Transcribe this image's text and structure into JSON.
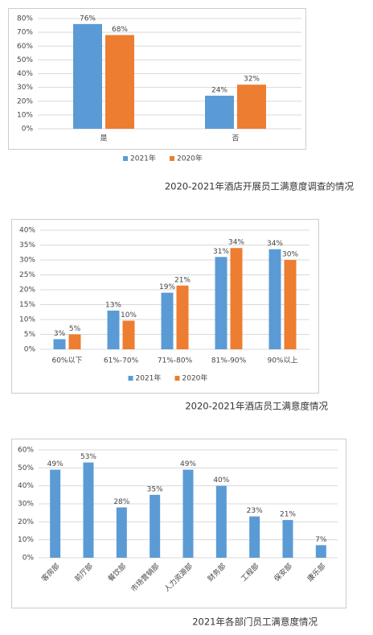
{
  "chart_data": [
    {
      "type": "bar",
      "title": "2020-2021年酒店开展员工满意度调查的情况",
      "categories": [
        "是",
        "否"
      ],
      "series": [
        {
          "name": "2021年",
          "color": "#5b9bd5",
          "values": [
            76,
            24
          ],
          "value_labels": [
            "76%",
            "24%"
          ]
        },
        {
          "name": "2020年",
          "color": "#ed7d31",
          "values": [
            68,
            32
          ],
          "value_labels": [
            "68%",
            "32%"
          ]
        }
      ],
      "ylim": [
        0,
        80
      ],
      "yticks": [
        {
          "value": 0,
          "label": "0%"
        },
        {
          "value": 10,
          "label": "10%"
        },
        {
          "value": 20,
          "label": "20%"
        },
        {
          "value": 30,
          "label": "30%"
        },
        {
          "value": 40,
          "label": "40%"
        },
        {
          "value": 50,
          "label": "50%"
        },
        {
          "value": 60,
          "label": "60%"
        },
        {
          "value": 70,
          "label": "70%"
        },
        {
          "value": 80,
          "label": "80%"
        }
      ],
      "grid": true,
      "legend": "bottom"
    },
    {
      "type": "bar",
      "title": "2020-2021年酒店员工满意度情况",
      "categories": [
        "60%以下",
        "61%-70%",
        "71%-80%",
        "81%-90%",
        "90%以上"
      ],
      "series": [
        {
          "name": "2021年",
          "color": "#5b9bd5",
          "values": [
            3.4,
            13,
            19,
            31,
            33.6
          ],
          "value_labels": [
            "3%",
            "13%",
            "19%",
            "31%",
            "34%"
          ]
        },
        {
          "name": "2020年",
          "color": "#ed7d31",
          "values": [
            5,
            9.6,
            21.4,
            34,
            30
          ],
          "value_labels": [
            "5%",
            "10%",
            "21%",
            "34%",
            "30%"
          ]
        }
      ],
      "ylim": [
        0,
        40
      ],
      "yticks": [
        {
          "value": 0,
          "label": "0%"
        },
        {
          "value": 5,
          "label": "5%"
        },
        {
          "value": 10,
          "label": "10%"
        },
        {
          "value": 15,
          "label": "15%"
        },
        {
          "value": 20,
          "label": "20%"
        },
        {
          "value": 25,
          "label": "25%"
        },
        {
          "value": 30,
          "label": "30%"
        },
        {
          "value": 35,
          "label": "35%"
        },
        {
          "value": 40,
          "label": "40%"
        }
      ],
      "grid": true,
      "legend": "bottom"
    },
    {
      "type": "bar",
      "title": "2021年各部门员工满意度情况",
      "categories": [
        "客房部",
        "前厅部",
        "餐饮部",
        "市场营销部",
        "人力资源部",
        "财务部",
        "工程部",
        "保安部",
        "康乐部"
      ],
      "values": [
        49,
        53,
        28,
        35,
        49,
        40,
        23,
        21,
        7
      ],
      "value_labels": [
        "49%",
        "53%",
        "28%",
        "35%",
        "49%",
        "40%",
        "23%",
        "21%",
        "7%"
      ],
      "color": "#5b9bd5",
      "ylim": [
        0,
        60
      ],
      "yticks": [
        {
          "value": 0,
          "label": "0%"
        },
        {
          "value": 10,
          "label": "10%"
        },
        {
          "value": 20,
          "label": "20%"
        },
        {
          "value": 30,
          "label": "30%"
        },
        {
          "value": 40,
          "label": "40%"
        },
        {
          "value": 50,
          "label": "50%"
        },
        {
          "value": 60,
          "label": "60%"
        }
      ],
      "grid": true
    }
  ]
}
